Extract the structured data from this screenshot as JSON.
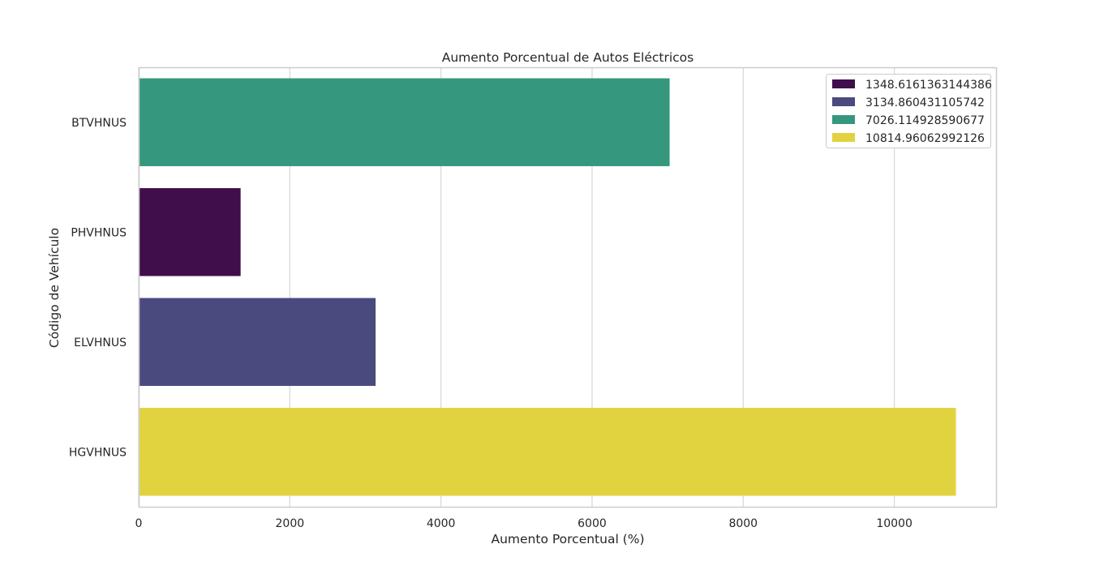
{
  "chart_data": {
    "type": "bar",
    "orientation": "horizontal",
    "title": "Aumento Porcentual de Autos Eléctricos",
    "xlabel": "Aumento Porcentual (%)",
    "ylabel": "Código de Vehículo",
    "xlim": [
      0,
      11346
    ],
    "xticks": [
      0,
      2000,
      4000,
      6000,
      8000,
      10000
    ],
    "xtick_labels": [
      "0",
      "2000",
      "4000",
      "6000",
      "8000",
      "10000"
    ],
    "grid": "vertical",
    "legend_position": "top-right",
    "categories": [
      "BTVHNUS",
      "PHVHNUS",
      "ELVHNUS",
      "HGVHNUS"
    ],
    "values": [
      7026.114928590677,
      1348.6161363144386,
      3134.860431105742,
      10814.96062992126
    ],
    "bar_colors": [
      "#35987e",
      "#400e4b",
      "#4a4a7e",
      "#e1d33f"
    ],
    "legend": [
      {
        "label": "1348.6161363144386",
        "color": "#400e4b"
      },
      {
        "label": "3134.860431105742",
        "color": "#4a4a7e"
      },
      {
        "label": "7026.114928590677",
        "color": "#35987e"
      },
      {
        "label": "10814.96062992126",
        "color": "#e1d33f"
      }
    ],
    "colors": {
      "grid": "#d9d9d9",
      "frame": "#cccccc",
      "text": "#262626"
    }
  }
}
